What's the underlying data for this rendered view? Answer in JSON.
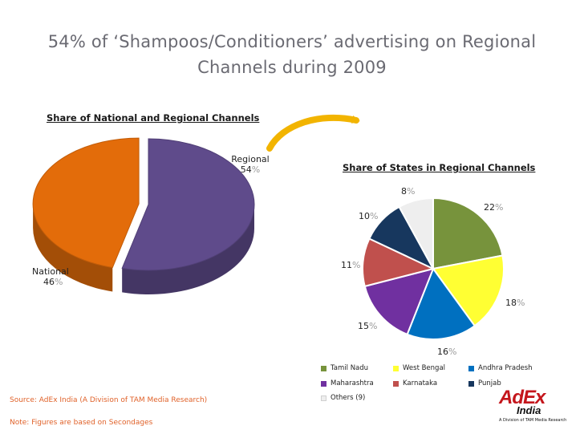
{
  "slide": {
    "title_line1": "54% of ‘Shampoos/Conditioners’ advertising on Regional",
    "title_line2": "Channels during 2009",
    "source": "Source: AdEx India (A Division of TAM Media Research)",
    "note": "Note: Figures are based on Secondages",
    "logo": {
      "line1": "AdEx",
      "line2": "India",
      "tagline": "A Division of TAM Media Research"
    }
  },
  "chart_data": [
    {
      "type": "pie",
      "title": "Share of National and Regional Channels",
      "labels": [
        "National",
        "Regional"
      ],
      "values": [
        46,
        54
      ],
      "value_text": [
        "46",
        "54"
      ],
      "unit": "%",
      "colors": [
        "#e36c0a",
        "#5f4b8b"
      ],
      "style": "3d"
    },
    {
      "type": "pie",
      "title": "Share of States in Regional Channels",
      "labels": [
        "Tamil Nadu",
        "West Bengal",
        "Andhra Pradesh",
        "Maharashtra",
        "Karnataka",
        "Punjab",
        "Others (9)"
      ],
      "values": [
        22,
        18,
        16,
        15,
        11,
        10,
        8
      ],
      "value_text": [
        "22",
        "18",
        "16",
        "15",
        "11",
        "10",
        "8"
      ],
      "unit": "%",
      "colors": [
        "#77933c",
        "#ffff33",
        "#0070c0",
        "#7030a0",
        "#c0504d",
        "#17375e",
        "#eeeeee"
      ],
      "legend_position": "bottom"
    }
  ]
}
